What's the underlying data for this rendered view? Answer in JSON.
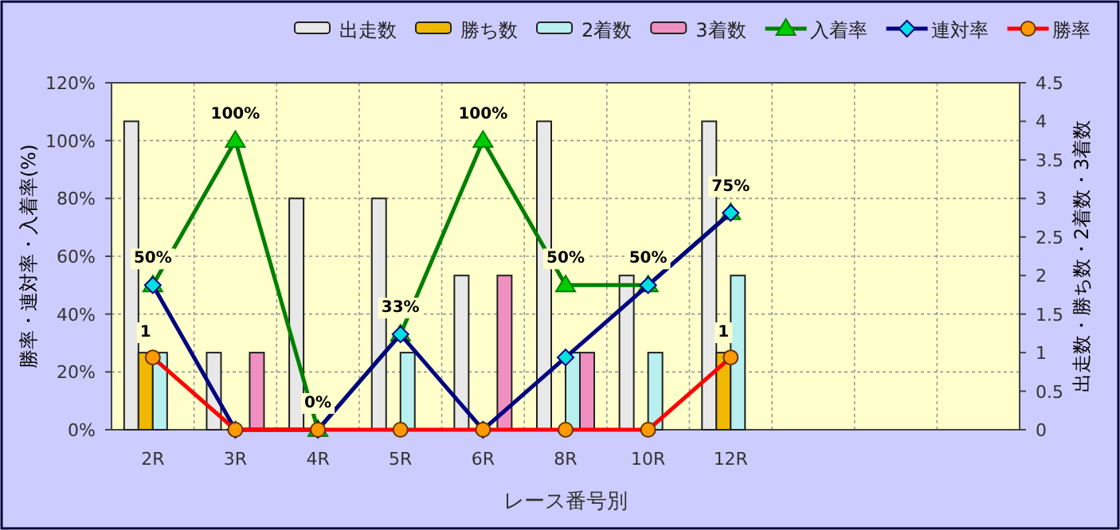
{
  "chart_data": {
    "type": "bar",
    "xlabel": "レース番号別",
    "ylabel": "勝率・連対率・入着率(%)",
    "y2label": "出走数・勝ち数・2着数・3着数",
    "categories": [
      "2R",
      "3R",
      "4R",
      "5R",
      "6R",
      "8R",
      "10R",
      "12R",
      null,
      null,
      null
    ],
    "series": [
      {
        "name": "出走数",
        "axis": "y2",
        "color": "#e8e8e8",
        "values": [
          4,
          1,
          3,
          3,
          2,
          4,
          2,
          4,
          null,
          null,
          null
        ]
      },
      {
        "name": "勝ち数",
        "axis": "y2",
        "color": "#f0b800",
        "values": [
          1,
          0,
          0,
          0,
          0,
          0,
          0,
          1,
          null,
          null,
          null
        ],
        "value_labels": [
          "1",
          null,
          null,
          null,
          null,
          null,
          null,
          "1",
          null,
          null,
          null
        ]
      },
      {
        "name": "2着数",
        "axis": "y2",
        "color": "#b8f0f0",
        "values": [
          1,
          0,
          0,
          1,
          0,
          1,
          1,
          2,
          null,
          null,
          null
        ]
      },
      {
        "name": "3着数",
        "axis": "y2",
        "color": "#f090c0",
        "values": [
          0,
          1,
          0,
          0,
          2,
          1,
          0,
          0,
          null,
          null,
          null
        ]
      },
      {
        "name": "入着率",
        "type": "line",
        "axis": "y",
        "color": "#008000",
        "marker": "triangle",
        "values": [
          50,
          100,
          0,
          33,
          100,
          50,
          50,
          75,
          null,
          null,
          null
        ],
        "value_labels": [
          "50%",
          "100%",
          "0%",
          "33%",
          "100%",
          "50%",
          "50%",
          "75%",
          null,
          null,
          null
        ]
      },
      {
        "name": "連対率",
        "type": "line",
        "axis": "y",
        "color": "#000080",
        "marker": "diamond",
        "values": [
          50,
          0,
          0,
          33,
          0,
          25,
          50,
          75,
          null,
          null,
          null
        ]
      },
      {
        "name": "勝率",
        "type": "line",
        "axis": "y",
        "color": "#ff0000",
        "marker": "circle",
        "values": [
          25,
          0,
          0,
          0,
          0,
          0,
          0,
          25,
          null,
          null,
          null
        ]
      }
    ],
    "ylim": [
      0,
      120
    ],
    "yticks": [
      {
        "value": 0,
        "label": "0%"
      },
      {
        "value": 20,
        "label": "20%"
      },
      {
        "value": 40,
        "label": "40%"
      },
      {
        "value": 60,
        "label": "60%"
      },
      {
        "value": 80,
        "label": "80%"
      },
      {
        "value": 100,
        "label": "100%"
      },
      {
        "value": 120,
        "label": "120%"
      }
    ],
    "y2lim": [
      0,
      4.5
    ],
    "y2ticks": [
      0,
      0.5,
      1,
      1.5,
      2,
      2.5,
      3,
      3.5,
      4,
      4.5
    ],
    "grid": true,
    "legend": "top"
  }
}
